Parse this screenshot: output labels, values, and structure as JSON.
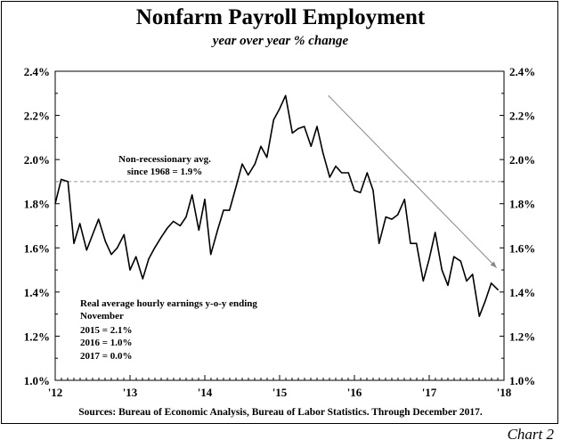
{
  "title": "Nonfarm Payroll Employment",
  "subtitle": "year over year % change",
  "sources": "Sources: Bureau of Economic Analysis, Bureau of Labor Statistics. Through December 2017.",
  "chart_label": "Chart 2",
  "colors": {
    "line": "#000000",
    "avg_line": "#999999",
    "trend_arrow": "#888888"
  },
  "chart_data": {
    "type": "line",
    "title": "Nonfarm Payroll Employment",
    "subtitle": "year over year % change",
    "xlabel": "",
    "ylabel": "",
    "x_ticks": [
      "'12",
      "'13",
      "'14",
      "'15",
      "'16",
      "'17",
      "'18"
    ],
    "y_ticks": [
      "1.0%",
      "1.2%",
      "1.4%",
      "1.6%",
      "1.8%",
      "2.0%",
      "2.2%",
      "2.4%"
    ],
    "xlim": [
      2012.0,
      2018.0
    ],
    "ylim": [
      1.0,
      2.4
    ],
    "grid": false,
    "series": [
      {
        "x": [
          2012.0,
          2012.08,
          2012.17,
          2012.25,
          2012.33,
          2012.42,
          2012.5,
          2012.58,
          2012.67,
          2012.75,
          2012.83,
          2012.92,
          2013.0,
          2013.08,
          2013.17,
          2013.25,
          2013.33,
          2013.42,
          2013.5,
          2013.58,
          2013.67,
          2013.75,
          2013.83,
          2013.92,
          2014.0,
          2014.08,
          2014.17,
          2014.25,
          2014.33,
          2014.42,
          2014.5,
          2014.58,
          2014.67,
          2014.75,
          2014.83,
          2014.92,
          2015.0,
          2015.08,
          2015.17,
          2015.25,
          2015.33,
          2015.42,
          2015.5,
          2015.58,
          2015.67,
          2015.75,
          2015.83,
          2015.92,
          2016.0,
          2016.08,
          2016.17,
          2016.25,
          2016.33,
          2016.42,
          2016.5,
          2016.58,
          2016.67,
          2016.75,
          2016.83,
          2016.92,
          2017.0,
          2017.08,
          2017.17,
          2017.25,
          2017.33,
          2017.42,
          2017.5,
          2017.58,
          2017.67,
          2017.75,
          2017.83,
          2017.92
        ],
        "values": [
          1.8,
          1.91,
          1.9,
          1.62,
          1.71,
          1.59,
          1.66,
          1.73,
          1.63,
          1.57,
          1.6,
          1.66,
          1.5,
          1.56,
          1.46,
          1.55,
          1.6,
          1.65,
          1.69,
          1.72,
          1.7,
          1.74,
          1.84,
          1.68,
          1.82,
          1.57,
          1.68,
          1.77,
          1.77,
          1.88,
          1.98,
          1.93,
          1.98,
          2.06,
          2.01,
          2.18,
          2.23,
          2.29,
          2.12,
          2.14,
          2.15,
          2.06,
          2.15,
          2.03,
          1.92,
          1.97,
          1.94,
          1.94,
          1.86,
          1.85,
          1.94,
          1.86,
          1.62,
          1.74,
          1.73,
          1.75,
          1.82,
          1.62,
          1.62,
          1.45,
          1.55,
          1.67,
          1.5,
          1.43,
          1.56,
          1.54,
          1.45,
          1.48,
          1.29,
          1.36,
          1.44,
          1.41
        ]
      }
    ],
    "reference_line": {
      "value": 1.9,
      "label_line1": "Non-recessionary avg.",
      "label_line2": "since 1968 = 1.9%"
    },
    "trend_arrow": {
      "from": [
        2015.65,
        2.29
      ],
      "to": [
        2017.9,
        1.51
      ]
    },
    "note": {
      "line1": "Real average hourly earnings y-o-y ending",
      "line2": "November",
      "line3": "2015 = 2.1%",
      "line4": "2016 = 1.0%",
      "line5": "2017 = 0.0%"
    }
  }
}
